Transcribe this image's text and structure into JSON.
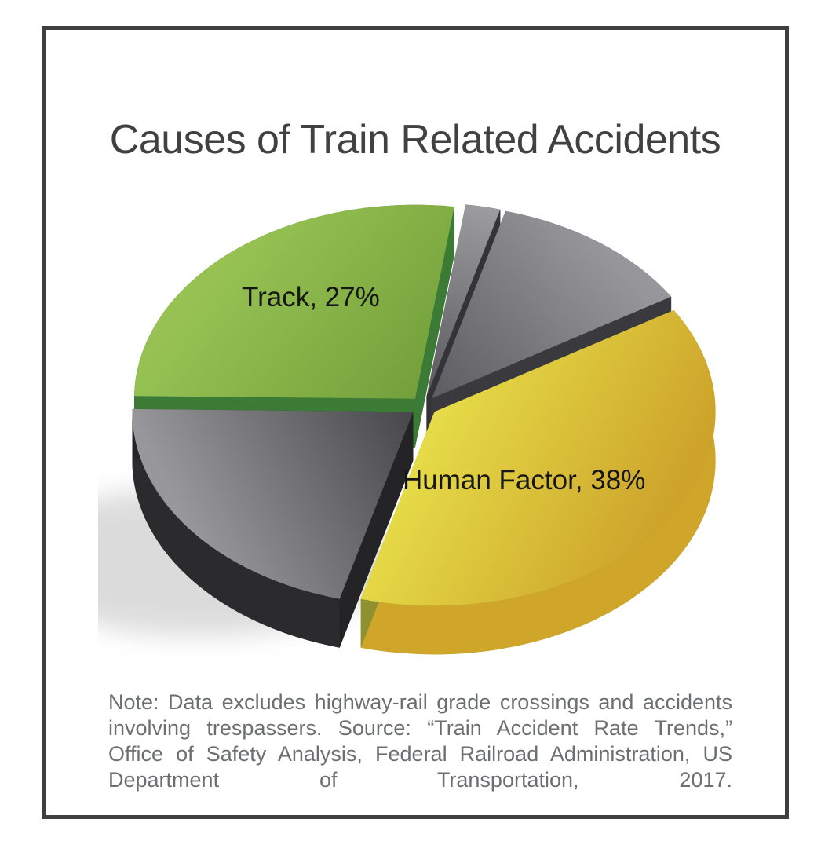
{
  "header": {
    "title": "Causes of Train Related Accidents"
  },
  "chart_data": {
    "type": "pie",
    "style": "3d-exploded",
    "title": "Causes of Train Related Accidents",
    "legend_position": "none",
    "labels_on_slices": true,
    "start_angle_deg": 8,
    "slices": [
      {
        "label": "",
        "value": 2,
        "estimated": true,
        "display_label": "",
        "color": "#9c9c9f",
        "color_dark": "#59595d",
        "rim": "#404044",
        "wall": "#343438",
        "invert_gradient": false
      },
      {
        "label": "",
        "value": 12,
        "estimated": true,
        "display_label": "",
        "color": "#97979b",
        "color_dark": "#5c5c61",
        "rim": "#2f2f33",
        "wall": "#3a3a3e",
        "invert_gradient": false
      },
      {
        "label": "Human Factor",
        "value": 38,
        "estimated": false,
        "display_label": "Human Factor, 38%",
        "color": "#e6dc48",
        "color_dark": "#cda32a",
        "rim": "#cfa629",
        "wall": "#8f9030",
        "invert_gradient": true
      },
      {
        "label": "",
        "value": 21,
        "estimated": true,
        "display_label": "",
        "color": "#98989b",
        "color_dark": "#47474b",
        "rim": "#2b2b2e",
        "wall": "#242427",
        "invert_gradient": false
      },
      {
        "label": "Track",
        "value": 27,
        "estimated": false,
        "display_label": "Track, 27%",
        "color": "#97c253",
        "color_dark": "#73a03b",
        "rim": "#2e6b31",
        "wall": "#3c7b36",
        "invert_gradient": false
      }
    ]
  },
  "note": {
    "text": "Note: Data excludes highway-rail grade crossings and accidents involving trespassers. Source: “Train Accident Rate Trends,” Office of Safety Analysis, Federal Railroad Administration, US Department of Transportation, 2017."
  },
  "colors": {
    "background": "#ffffff",
    "frame_border": "#3f3f41",
    "title_text": "#414042",
    "note_text": "#6d6e71",
    "slice_label_text": "#161616"
  }
}
